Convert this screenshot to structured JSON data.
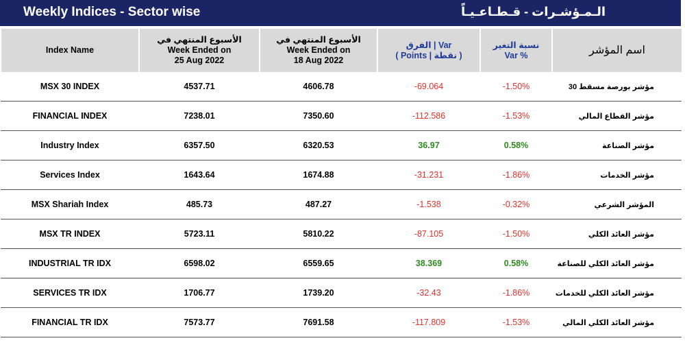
{
  "header": {
    "title": "Weekly Indices - Sector wise",
    "title_ar": "الـمـؤشـرات - قـطـاعـيـاً"
  },
  "table": {
    "headers": [
      [
        "Index Name"
      ],
      [
        "الأسبوع المنتهي في",
        "Week Ended on",
        "25 Aug 2022"
      ],
      [
        "الأسبوع المنتهي في",
        "Week Ended on",
        "18 Aug 2022"
      ],
      [
        "الفرق | Var",
        "( Points | نقطة )"
      ],
      [
        "نسبة التغير",
        "Var %"
      ],
      [
        "اسم المؤشر"
      ]
    ],
    "rows": [
      [
        "MSX 30 INDEX",
        "4537.71",
        "4606.78",
        "-69.064",
        "-1.50%",
        "مؤشر بورصة مسقط 30"
      ],
      [
        "FINANCIAL INDEX",
        "7238.01",
        "7350.60",
        "-112.586",
        "-1.53%",
        "مؤشر القطاع المالي"
      ],
      [
        "Industry Index",
        "6357.50",
        "6320.53",
        "36.97",
        "0.58%",
        "مؤشر الصناعة"
      ],
      [
        "Services Index",
        "1643.64",
        "1674.88",
        "-31.231",
        "-1.86%",
        "مؤشر الخدمات"
      ],
      [
        "MSX Shariah Index",
        "485.73",
        "487.27",
        "-1.538",
        "-0.32%",
        "المؤشر الشرعي"
      ],
      [
        "MSX TR INDEX",
        "5723.11",
        "5810.22",
        "-87.105",
        "-1.50%",
        "مؤشر العائد الكلي"
      ],
      [
        "INDUSTRIAL TR IDX",
        "6598.02",
        "6559.65",
        "38.369",
        "0.58%",
        "مؤشر العائد الكلي للصناعة"
      ],
      [
        "SERVICES TR IDX",
        "1706.77",
        "1739.20",
        "-32.43",
        "-1.86%",
        "مؤشر العائد الكلي للخدمات"
      ],
      [
        "FINANCIAL TR IDX",
        "7573.77",
        "7691.58",
        "-117.809",
        "-1.53%",
        "مؤشر العائد الكلي المالي"
      ]
    ]
  }
}
